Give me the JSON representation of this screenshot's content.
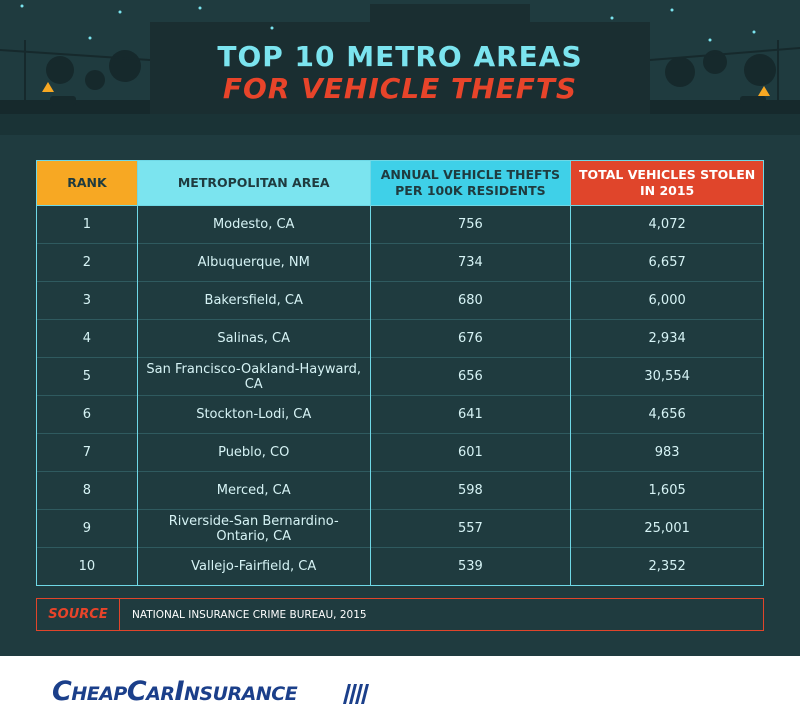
{
  "header": {
    "title": [
      "TOP 10 METRO AREAS",
      "FOR VEHICLE THEFTS"
    ]
  },
  "table": {
    "columns": [
      "RANK",
      "METROPOLITAN AREA",
      "ANNUAL VEHICLE THEFTS PER 100K RESIDENTS",
      "TOTAL VEHICLES STOLEN IN 2015"
    ],
    "rows": [
      [
        "1",
        "Modesto, CA",
        "756",
        "4,072"
      ],
      [
        "2",
        "Albuquerque, NM",
        "734",
        "6,657"
      ],
      [
        "3",
        "Bakersfield, CA",
        "680",
        "6,000"
      ],
      [
        "4",
        "Salinas, CA",
        "676",
        "2,934"
      ],
      [
        "5",
        "San Francisco-Oakland-Hayward, CA",
        "656",
        "30,554"
      ],
      [
        "6",
        "Stockton-Lodi, CA",
        "641",
        "4,656"
      ],
      [
        "7",
        "Pueblo, CO",
        "601",
        "983"
      ],
      [
        "8",
        "Merced, CA",
        "598",
        "1,605"
      ],
      [
        "9",
        "Riverside-San Bernardino-Ontario, CA",
        "557",
        "25,001"
      ],
      [
        "10",
        "Vallejo-Fairfield, CA",
        "539",
        "2,352"
      ]
    ]
  },
  "source": {
    "label": "SOURCE",
    "text": "NATIONAL INSURANCE CRIME BUREAU, 2015"
  },
  "footer": {
    "brand": "CheapCarInsurance"
  }
}
